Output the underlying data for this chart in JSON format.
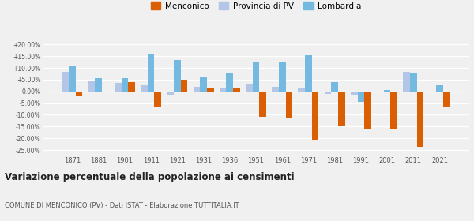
{
  "years": [
    1871,
    1881,
    1901,
    1911,
    1921,
    1931,
    1936,
    1951,
    1961,
    1971,
    1981,
    1991,
    2001,
    2011,
    2021
  ],
  "menconico": [
    -2.0,
    -0.5,
    4.0,
    -6.5,
    5.0,
    1.5,
    1.5,
    -11.0,
    -11.5,
    -20.5,
    -15.0,
    -16.0,
    -16.0,
    -23.5,
    -6.5
  ],
  "provincia_pv": [
    8.5,
    4.5,
    3.5,
    2.5,
    -1.5,
    2.0,
    1.5,
    3.0,
    2.0,
    1.5,
    -1.0,
    -1.5,
    -0.5,
    8.5,
    0.0
  ],
  "lombardia": [
    11.0,
    5.5,
    5.5,
    16.0,
    13.5,
    6.0,
    8.0,
    12.5,
    12.5,
    15.5,
    4.0,
    -4.5,
    0.5,
    7.5,
    2.5
  ],
  "color_menconico": "#d95f02",
  "color_provincia": "#b3c6e7",
  "color_lombardia": "#74b9e0",
  "ylim": [
    -27,
    22
  ],
  "yticks": [
    -25.0,
    -20.0,
    -15.0,
    -10.0,
    -5.0,
    0.0,
    5.0,
    10.0,
    15.0,
    20.0
  ],
  "title": "Variazione percentuale della popolazione ai censimenti",
  "subtitle": "COMUNE DI MENCONICO (PV) - Dati ISTAT - Elaborazione TUTTITALIA.IT",
  "legend_menconico": "Menconico",
  "legend_provincia": "Provincia di PV",
  "legend_lombardia": "Lombardia",
  "bg_color": "#f0f0f0",
  "grid_color": "#ffffff"
}
